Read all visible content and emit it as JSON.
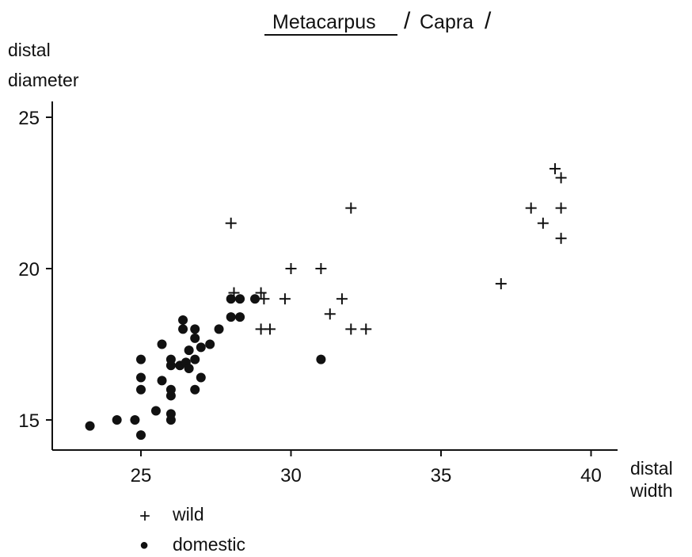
{
  "chart_data": {
    "type": "scatter",
    "title": "Metacarpus",
    "title_suffix": "Capra",
    "title_slash": "/",
    "ylabel_lines": [
      "distal",
      "diameter"
    ],
    "xlabel_lines": [
      "distal",
      "width"
    ],
    "xticks": [
      25,
      30,
      35,
      40
    ],
    "yticks": [
      15,
      20,
      25
    ],
    "xlim": [
      22,
      42
    ],
    "ylim": [
      14,
      26
    ],
    "grid": false,
    "legend_position": "bottom-left",
    "series": [
      {
        "name": "wild",
        "marker": "plus",
        "points": [
          [
            28.0,
            21.5
          ],
          [
            32.0,
            22.0
          ],
          [
            28.1,
            19.2
          ],
          [
            29.0,
            19.2
          ],
          [
            29.1,
            19.0
          ],
          [
            29.8,
            19.0
          ],
          [
            30.0,
            20.0
          ],
          [
            31.0,
            20.0
          ],
          [
            31.7,
            19.0
          ],
          [
            31.3,
            18.5
          ],
          [
            29.0,
            18.0
          ],
          [
            29.3,
            18.0
          ],
          [
            32.0,
            18.0
          ],
          [
            32.5,
            18.0
          ],
          [
            37.0,
            19.5
          ],
          [
            38.0,
            22.0
          ],
          [
            38.4,
            21.5
          ],
          [
            38.8,
            23.3
          ],
          [
            39.0,
            23.0
          ],
          [
            39.0,
            22.0
          ],
          [
            39.0,
            21.0
          ]
        ]
      },
      {
        "name": "domestic",
        "marker": "dot",
        "points": [
          [
            23.3,
            14.8
          ],
          [
            24.2,
            15.0
          ],
          [
            24.8,
            15.0
          ],
          [
            25.0,
            14.5
          ],
          [
            25.0,
            16.0
          ],
          [
            25.0,
            16.4
          ],
          [
            25.0,
            17.0
          ],
          [
            25.5,
            15.3
          ],
          [
            25.7,
            17.5
          ],
          [
            25.7,
            16.3
          ],
          [
            26.0,
            15.0
          ],
          [
            26.0,
            15.2
          ],
          [
            26.0,
            15.8
          ],
          [
            26.0,
            16.0
          ],
          [
            26.0,
            16.8
          ],
          [
            26.0,
            17.0
          ],
          [
            26.3,
            16.8
          ],
          [
            26.4,
            18.3
          ],
          [
            26.4,
            18.0
          ],
          [
            26.5,
            16.9
          ],
          [
            26.6,
            17.3
          ],
          [
            26.6,
            16.7
          ],
          [
            26.8,
            18.0
          ],
          [
            26.8,
            17.7
          ],
          [
            26.8,
            17.0
          ],
          [
            26.8,
            16.0
          ],
          [
            27.0,
            17.4
          ],
          [
            27.0,
            16.4
          ],
          [
            27.3,
            17.5
          ],
          [
            27.6,
            18.0
          ],
          [
            28.0,
            19.0
          ],
          [
            28.0,
            18.4
          ],
          [
            28.3,
            19.0
          ],
          [
            28.3,
            18.4
          ],
          [
            28.8,
            19.0
          ],
          [
            31.0,
            17.0
          ]
        ]
      }
    ]
  },
  "legend": [
    {
      "symbol": "+",
      "label": "wild"
    },
    {
      "symbol": "●",
      "label": "domestic"
    }
  ]
}
